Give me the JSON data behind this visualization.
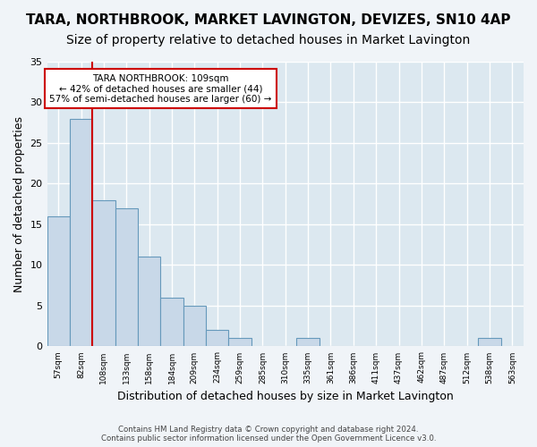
{
  "title1": "TARA, NORTHBROOK, MARKET LAVINGTON, DEVIZES, SN10 4AP",
  "title2": "Size of property relative to detached houses in Market Lavington",
  "xlabel": "Distribution of detached houses by size in Market Lavington",
  "ylabel": "Number of detached properties",
  "footer1": "Contains HM Land Registry data © Crown copyright and database right 2024.",
  "footer2": "Contains public sector information licensed under the Open Government Licence v3.0.",
  "bins": [
    "57sqm",
    "82sqm",
    "108sqm",
    "133sqm",
    "158sqm",
    "184sqm",
    "209sqm",
    "234sqm",
    "259sqm",
    "285sqm",
    "310sqm",
    "335sqm",
    "361sqm",
    "386sqm",
    "411sqm",
    "437sqm",
    "462sqm",
    "487sqm",
    "512sqm",
    "538sqm",
    "563sqm"
  ],
  "values": [
    16,
    28,
    18,
    17,
    11,
    6,
    5,
    2,
    1,
    0,
    0,
    1,
    0,
    0,
    0,
    0,
    0,
    0,
    0,
    1,
    0
  ],
  "bar_color": "#c8d8e8",
  "bar_edge_color": "#6699bb",
  "highlight_line_color": "#cc0000",
  "annotation_text": "TARA NORTHBROOK: 109sqm\n← 42% of detached houses are smaller (44)\n57% of semi-detached houses are larger (60) →",
  "annotation_box_color": "#ffffff",
  "annotation_box_edge_color": "#cc0000",
  "ylim": [
    0,
    35
  ],
  "yticks": [
    0,
    5,
    10,
    15,
    20,
    25,
    30,
    35
  ],
  "bg_color": "#dce8f0",
  "grid_color": "#ffffff",
  "fig_bg_color": "#f0f4f8",
  "title1_fontsize": 11,
  "title2_fontsize": 10,
  "xlabel_fontsize": 9,
  "ylabel_fontsize": 9
}
